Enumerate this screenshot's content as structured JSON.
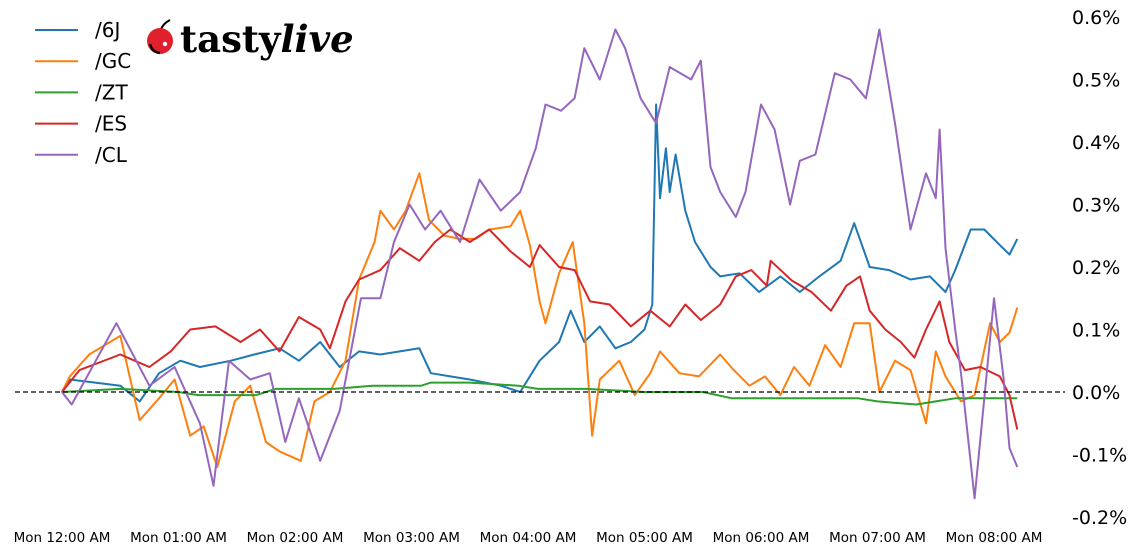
{
  "logo": {
    "text": "tastylive",
    "part1": "tasty",
    "part2": "live"
  },
  "chart_data": {
    "type": "line",
    "title": "",
    "xlabel": "",
    "ylabel": "",
    "y_axis_side": "right",
    "ylim": [
      -0.2,
      0.6
    ],
    "y_ticks": [
      0.6,
      0.5,
      0.4,
      0.3,
      0.2,
      0.1,
      0.0,
      -0.1,
      -0.2
    ],
    "y_tick_labels": [
      "0.6%",
      "0.5%",
      "0.4%",
      "0.3%",
      "0.2%",
      "0.1%",
      "0.0%",
      "-0.1%",
      "-0.2%"
    ],
    "x_tick_labels": [
      "Mon 12:00 AM",
      "Mon 01:00 AM",
      "Mon 02:00 AM",
      "Mon 03:00 AM",
      "Mon 04:00 AM",
      "Mon 05:00 AM",
      "Mon 06:00 AM",
      "Mon 07:00 AM",
      "Mon 08:00 AM"
    ],
    "x_ticks": [
      "00:00",
      "01:00",
      "02:00",
      "03:00",
      "04:00",
      "05:00",
      "06:00",
      "07:00",
      "08:00"
    ],
    "xlim": [
      "00:00",
      "08:25"
    ],
    "reference_line": {
      "value": 0.0,
      "style": "dashed",
      "color": "#000000"
    },
    "grid": false,
    "legend_position": "top-left",
    "series": [
      {
        "name": "/6J",
        "color": "#1f77b4",
        "points": [
          [
            "00:00",
            0
          ],
          [
            "00:04",
            0.02
          ],
          [
            "00:30",
            0.01
          ],
          [
            "00:40",
            -0.015
          ],
          [
            "00:50",
            0.03
          ],
          [
            "01:01",
            0.05
          ],
          [
            "01:11",
            0.04
          ],
          [
            "01:27",
            0.05
          ],
          [
            "01:39",
            0.06
          ],
          [
            "01:52",
            0.07
          ],
          [
            "02:02",
            0.05
          ],
          [
            "02:13",
            0.08
          ],
          [
            "02:23",
            0.04
          ],
          [
            "02:33",
            0.065
          ],
          [
            "02:44",
            0.06
          ],
          [
            "02:54",
            0.065
          ],
          [
            "03:04",
            0.07
          ],
          [
            "03:10",
            0.03
          ],
          [
            "03:20",
            0.025
          ],
          [
            "03:30",
            0.02
          ],
          [
            "03:46",
            0.01
          ],
          [
            "03:56",
            0.0
          ],
          [
            "04:06",
            0.05
          ],
          [
            "04:16",
            0.08
          ],
          [
            "04:22",
            0.13
          ],
          [
            "04:29",
            0.08
          ],
          [
            "04:37",
            0.105
          ],
          [
            "04:45",
            0.07
          ],
          [
            "04:53",
            0.08
          ],
          [
            "05:00",
            0.1
          ],
          [
            "05:04",
            0.14
          ],
          [
            "05:06",
            0.46
          ],
          [
            "05:08",
            0.31
          ],
          [
            "05:11",
            0.39
          ],
          [
            "05:13",
            0.32
          ],
          [
            "05:16",
            0.38
          ],
          [
            "05:21",
            0.29
          ],
          [
            "05:26",
            0.24
          ],
          [
            "05:34",
            0.2
          ],
          [
            "05:39",
            0.185
          ],
          [
            "05:49",
            0.19
          ],
          [
            "05:59",
            0.16
          ],
          [
            "06:10",
            0.185
          ],
          [
            "06:20",
            0.16
          ],
          [
            "06:30",
            0.185
          ],
          [
            "06:41",
            0.21
          ],
          [
            "06:48",
            0.27
          ],
          [
            "06:56",
            0.2
          ],
          [
            "07:06",
            0.195
          ],
          [
            "07:17",
            0.18
          ],
          [
            "07:27",
            0.185
          ],
          [
            "07:35",
            0.16
          ],
          [
            "07:40",
            0.195
          ],
          [
            "07:48",
            0.26
          ],
          [
            "07:55",
            0.26
          ],
          [
            "08:03",
            0.235
          ],
          [
            "08:08",
            0.22
          ],
          [
            "08:12",
            0.245
          ]
        ]
      },
      {
        "name": "/GC",
        "color": "#ff7f0e",
        "points": [
          [
            "00:00",
            0
          ],
          [
            "00:04",
            0.025
          ],
          [
            "00:14",
            0.06
          ],
          [
            "00:30",
            0.09
          ],
          [
            "00:40",
            -0.045
          ],
          [
            "00:50",
            -0.01
          ],
          [
            "00:58",
            0.02
          ],
          [
            "01:06",
            -0.07
          ],
          [
            "01:13",
            -0.055
          ],
          [
            "01:20",
            -0.12
          ],
          [
            "01:29",
            -0.015
          ],
          [
            "01:37",
            0.01
          ],
          [
            "01:45",
            -0.08
          ],
          [
            "01:52",
            -0.095
          ],
          [
            "02:03",
            -0.11
          ],
          [
            "02:10",
            -0.015
          ],
          [
            "02:18",
            0.0
          ],
          [
            "02:26",
            0.05
          ],
          [
            "02:33",
            0.18
          ],
          [
            "02:41",
            0.24
          ],
          [
            "02:44",
            0.29
          ],
          [
            "02:51",
            0.26
          ],
          [
            "02:57",
            0.29
          ],
          [
            "03:04",
            0.35
          ],
          [
            "03:09",
            0.275
          ],
          [
            "03:17",
            0.25
          ],
          [
            "03:25",
            0.245
          ],
          [
            "03:33",
            0.245
          ],
          [
            "03:40",
            0.26
          ],
          [
            "03:51",
            0.265
          ],
          [
            "03:56",
            0.29
          ],
          [
            "04:01",
            0.235
          ],
          [
            "04:06",
            0.145
          ],
          [
            "04:09",
            0.11
          ],
          [
            "04:16",
            0.19
          ],
          [
            "04:23",
            0.24
          ],
          [
            "04:29",
            0.11
          ],
          [
            "04:33",
            -0.07
          ],
          [
            "04:37",
            0.02
          ],
          [
            "04:47",
            0.05
          ],
          [
            "04:55",
            -0.005
          ],
          [
            "05:03",
            0.03
          ],
          [
            "05:08",
            0.065
          ],
          [
            "05:18",
            0.03
          ],
          [
            "05:28",
            0.025
          ],
          [
            "05:39",
            0.06
          ],
          [
            "05:46",
            0.035
          ],
          [
            "05:54",
            0.01
          ],
          [
            "06:02",
            0.025
          ],
          [
            "06:10",
            -0.005
          ],
          [
            "06:17",
            0.04
          ],
          [
            "06:25",
            0.01
          ],
          [
            "06:33",
            0.075
          ],
          [
            "06:41",
            0.04
          ],
          [
            "06:48",
            0.11
          ],
          [
            "06:56",
            0.11
          ],
          [
            "07:01",
            0.0
          ],
          [
            "07:09",
            0.05
          ],
          [
            "07:17",
            0.035
          ],
          [
            "07:25",
            -0.05
          ],
          [
            "07:30",
            0.065
          ],
          [
            "07:35",
            0.025
          ],
          [
            "07:43",
            -0.015
          ],
          [
            "07:50",
            -0.005
          ],
          [
            "07:58",
            0.11
          ],
          [
            "08:03",
            0.08
          ],
          [
            "08:08",
            0.095
          ],
          [
            "08:12",
            0.135
          ]
        ]
      },
      {
        "name": "/ZT",
        "color": "#2ca02c",
        "points": [
          [
            "00:00",
            0
          ],
          [
            "00:30",
            0.005
          ],
          [
            "01:00",
            0.0
          ],
          [
            "01:10",
            -0.005
          ],
          [
            "01:40",
            -0.005
          ],
          [
            "01:50",
            0.005
          ],
          [
            "02:20",
            0.005
          ],
          [
            "02:40",
            0.01
          ],
          [
            "03:05",
            0.01
          ],
          [
            "03:10",
            0.015
          ],
          [
            "03:30",
            0.015
          ],
          [
            "03:55",
            0.01
          ],
          [
            "04:05",
            0.005
          ],
          [
            "04:30",
            0.005
          ],
          [
            "05:00",
            0.0
          ],
          [
            "05:30",
            0.0
          ],
          [
            "05:45",
            -0.01
          ],
          [
            "06:30",
            -0.01
          ],
          [
            "06:50",
            -0.01
          ],
          [
            "07:00",
            -0.015
          ],
          [
            "07:20",
            -0.02
          ],
          [
            "07:30",
            -0.015
          ],
          [
            "07:40",
            -0.01
          ],
          [
            "08:00",
            -0.01
          ],
          [
            "08:12",
            -0.01
          ]
        ]
      },
      {
        "name": "/ES",
        "color": "#d62728",
        "points": [
          [
            "00:00",
            0
          ],
          [
            "00:09",
            0.035
          ],
          [
            "00:30",
            0.06
          ],
          [
            "00:45",
            0.04
          ],
          [
            "00:56",
            0.065
          ],
          [
            "01:06",
            0.1
          ],
          [
            "01:19",
            0.105
          ],
          [
            "01:32",
            0.08
          ],
          [
            "01:42",
            0.1
          ],
          [
            "01:52",
            0.065
          ],
          [
            "02:02",
            0.12
          ],
          [
            "02:13",
            0.1
          ],
          [
            "02:18",
            0.07
          ],
          [
            "02:26",
            0.145
          ],
          [
            "02:33",
            0.18
          ],
          [
            "02:44",
            0.195
          ],
          [
            "02:54",
            0.23
          ],
          [
            "03:04",
            0.21
          ],
          [
            "03:12",
            0.24
          ],
          [
            "03:20",
            0.26
          ],
          [
            "03:30",
            0.24
          ],
          [
            "03:40",
            0.26
          ],
          [
            "03:51",
            0.225
          ],
          [
            "04:01",
            0.2
          ],
          [
            "04:06",
            0.235
          ],
          [
            "04:16",
            0.2
          ],
          [
            "04:24",
            0.195
          ],
          [
            "04:32",
            0.145
          ],
          [
            "04:42",
            0.14
          ],
          [
            "04:53",
            0.105
          ],
          [
            "05:03",
            0.13
          ],
          [
            "05:13",
            0.105
          ],
          [
            "05:21",
            0.14
          ],
          [
            "05:29",
            0.115
          ],
          [
            "05:39",
            0.14
          ],
          [
            "05:47",
            0.185
          ],
          [
            "05:55",
            0.195
          ],
          [
            "06:03",
            0.17
          ],
          [
            "06:05",
            0.21
          ],
          [
            "06:16",
            0.178
          ],
          [
            "06:26",
            0.16
          ],
          [
            "06:36",
            0.13
          ],
          [
            "06:44",
            0.17
          ],
          [
            "06:51",
            0.185
          ],
          [
            "06:56",
            0.13
          ],
          [
            "07:04",
            0.1
          ],
          [
            "07:12",
            0.08
          ],
          [
            "07:19",
            0.055
          ],
          [
            "07:25",
            0.1
          ],
          [
            "07:32",
            0.145
          ],
          [
            "07:37",
            0.08
          ],
          [
            "07:45",
            0.035
          ],
          [
            "07:53",
            0.04
          ],
          [
            "08:03",
            0.025
          ],
          [
            "08:08",
            -0.005
          ],
          [
            "08:12",
            -0.06
          ]
        ]
      },
      {
        "name": "/CL",
        "color": "#9467bd",
        "points": [
          [
            "00:00",
            0
          ],
          [
            "00:05",
            -0.02
          ],
          [
            "00:28",
            0.11
          ],
          [
            "00:45",
            0.01
          ],
          [
            "00:58",
            0.04
          ],
          [
            "01:11",
            -0.05
          ],
          [
            "01:18",
            -0.15
          ],
          [
            "01:26",
            0.05
          ],
          [
            "01:37",
            0.02
          ],
          [
            "01:47",
            0.03
          ],
          [
            "01:55",
            -0.08
          ],
          [
            "02:02",
            -0.01
          ],
          [
            "02:13",
            -0.11
          ],
          [
            "02:23",
            -0.03
          ],
          [
            "02:34",
            0.15
          ],
          [
            "02:44",
            0.15
          ],
          [
            "02:51",
            0.24
          ],
          [
            "02:59",
            0.3
          ],
          [
            "03:07",
            0.26
          ],
          [
            "03:15",
            0.29
          ],
          [
            "03:25",
            0.24
          ],
          [
            "03:35",
            0.34
          ],
          [
            "03:46",
            0.29
          ],
          [
            "03:56",
            0.32
          ],
          [
            "04:04",
            0.39
          ],
          [
            "04:09",
            0.46
          ],
          [
            "04:17",
            0.45
          ],
          [
            "04:24",
            0.47
          ],
          [
            "04:29",
            0.55
          ],
          [
            "04:37",
            0.5
          ],
          [
            "04:45",
            0.58
          ],
          [
            "04:50",
            0.55
          ],
          [
            "04:58",
            0.47
          ],
          [
            "05:06",
            0.43
          ],
          [
            "05:13",
            0.52
          ],
          [
            "05:24",
            0.5
          ],
          [
            "05:29",
            0.53
          ],
          [
            "05:34",
            0.36
          ],
          [
            "05:39",
            0.32
          ],
          [
            "05:47",
            0.28
          ],
          [
            "05:52",
            0.32
          ],
          [
            "06:00",
            0.46
          ],
          [
            "06:07",
            0.42
          ],
          [
            "06:15",
            0.3
          ],
          [
            "06:20",
            0.37
          ],
          [
            "06:28",
            0.38
          ],
          [
            "06:38",
            0.51
          ],
          [
            "06:46",
            0.5
          ],
          [
            "06:54",
            0.47
          ],
          [
            "07:01",
            0.58
          ],
          [
            "07:09",
            0.43
          ],
          [
            "07:17",
            0.26
          ],
          [
            "07:25",
            0.35
          ],
          [
            "07:30",
            0.31
          ],
          [
            "07:32",
            0.42
          ],
          [
            "07:35",
            0.23
          ],
          [
            "07:40",
            0.1
          ],
          [
            "07:43",
            0.03
          ],
          [
            "07:50",
            -0.17
          ],
          [
            "07:55",
            -0.01
          ],
          [
            "08:00",
            0.15
          ],
          [
            "08:05",
            0.02
          ],
          [
            "08:08",
            -0.09
          ],
          [
            "08:12",
            -0.12
          ]
        ]
      }
    ]
  }
}
